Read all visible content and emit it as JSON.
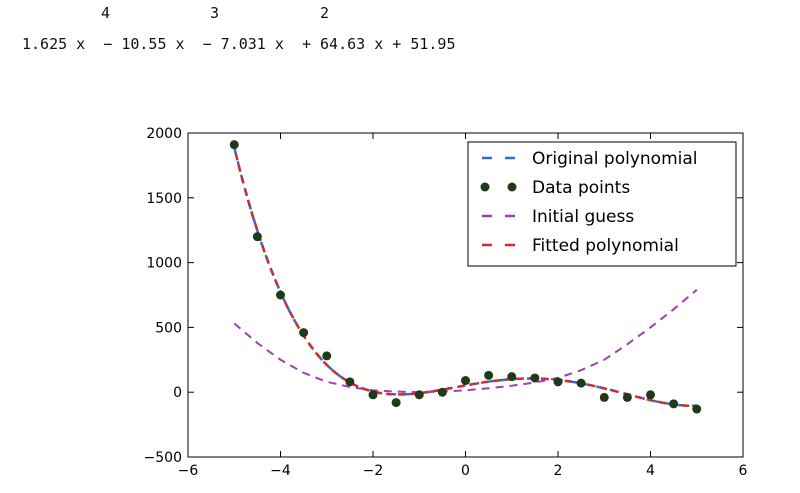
{
  "equation": {
    "exponents": [
      "4",
      "3",
      "2"
    ],
    "line": "1.625 x  − 10.55 x  − 7.031 x  + 64.63 x + 51.95"
  },
  "chart_data": {
    "type": "line",
    "title": "",
    "xlabel": "",
    "ylabel": "",
    "xlim": [
      -6,
      6
    ],
    "ylim": [
      -500,
      2000
    ],
    "xticks": [
      -6,
      -4,
      -2,
      0,
      2,
      4,
      6
    ],
    "yticks": [
      -500,
      0,
      500,
      1000,
      1500,
      2000
    ],
    "legend_position": "top-right",
    "series": [
      {
        "name": "Original polynomial",
        "style": "dashed",
        "color": "#2b6fd6",
        "kind": "line",
        "coefficients": [
          1.625,
          -10.55,
          -7.031,
          64.63,
          51.95
        ]
      },
      {
        "name": "Data points",
        "style": "markers",
        "color": "#1f3a17",
        "kind": "scatter",
        "x": [
          -5.0,
          -4.5,
          -4.0,
          -3.5,
          -3.0,
          -2.5,
          -2.0,
          -1.5,
          -1.0,
          -0.5,
          0.0,
          0.5,
          1.0,
          1.5,
          2.0,
          2.5,
          3.0,
          3.5,
          4.0,
          4.5,
          5.0
        ],
        "y": [
          1910,
          1200,
          750,
          460,
          280,
          80,
          -20,
          -80,
          -20,
          0,
          90,
          130,
          120,
          110,
          80,
          70,
          -40,
          -40,
          -20,
          -90,
          -130
        ]
      },
      {
        "name": "Initial guess",
        "style": "dashed",
        "color": "#a040b0",
        "kind": "line",
        "x": [
          -5,
          -4.5,
          -4,
          -3.5,
          -3,
          -2.5,
          -2,
          -1.5,
          -1,
          -0.5,
          0,
          0.5,
          1,
          1.5,
          2,
          2.5,
          3,
          3.5,
          4,
          4.5,
          5
        ],
        "y": [
          530,
          380,
          250,
          150,
          80,
          40,
          15,
          5,
          0,
          5,
          15,
          30,
          50,
          75,
          110,
          170,
          250,
          370,
          500,
          640,
          790
        ]
      },
      {
        "name": "Fitted polynomial",
        "style": "dashed",
        "color": "#d42a2a",
        "kind": "line",
        "coefficients": [
          1.625,
          -10.55,
          -7.031,
          64.63,
          51.95
        ]
      }
    ]
  }
}
